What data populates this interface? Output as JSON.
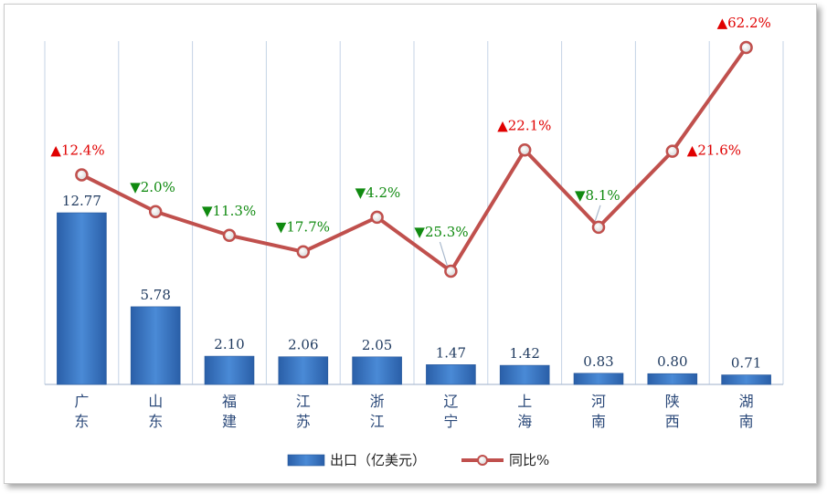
{
  "chart_data": {
    "type": "bar+line",
    "categories": [
      "广东",
      "山东",
      "福建",
      "江苏",
      "浙江",
      "辽宁",
      "上海",
      "河南",
      "陕西",
      "湖南"
    ],
    "series": [
      {
        "name": "出口（亿美元）",
        "type": "bar",
        "axis": "left",
        "values": [
          12.77,
          5.78,
          2.1,
          2.06,
          2.05,
          1.47,
          1.42,
          0.83,
          0.8,
          0.71
        ],
        "labels": [
          "12.77",
          "5.78",
          "2.10",
          "2.06",
          "2.05",
          "1.47",
          "1.42",
          "0.83",
          "0.80",
          "0.71"
        ],
        "color": "#3b78c4"
      },
      {
        "name": "同比%",
        "type": "line",
        "axis": "right",
        "values": [
          12.4,
          -2.0,
          -11.3,
          -17.7,
          -4.2,
          -25.3,
          22.1,
          -8.1,
          21.6,
          62.2
        ],
        "labels": [
          "12.4%",
          "2.0%",
          "11.3%",
          "17.7%",
          "4.2%",
          "25.3%",
          "22.1%",
          "8.1%",
          "21.6%",
          "62.2%"
        ],
        "color": "#c0504d"
      }
    ],
    "legend": {
      "placement": "bottom"
    },
    "grid": {
      "vertical": true,
      "horizontal": false
    },
    "colors": {
      "up": "#e00000",
      "down": "#108a10"
    }
  }
}
